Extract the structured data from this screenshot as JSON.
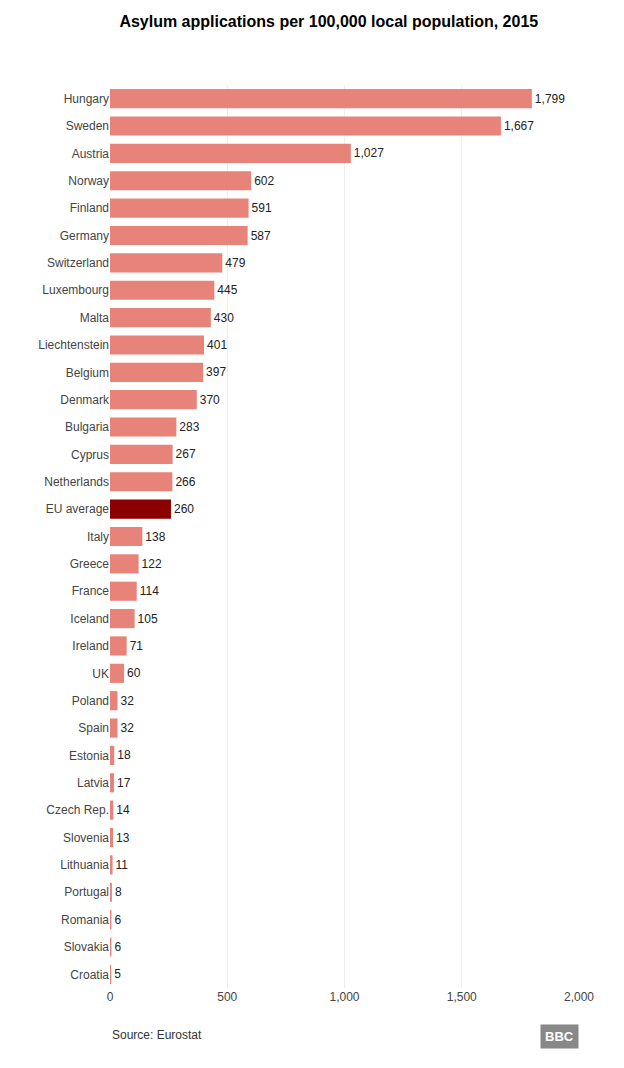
{
  "chart_data": {
    "type": "bar",
    "orientation": "horizontal",
    "title": "Asylum applications per 100,000 local population, 2015",
    "categories": [
      "Hungary",
      "Sweden",
      "Austria",
      "Norway",
      "Finland",
      "Germany",
      "Switzerland",
      "Luxembourg",
      "Malta",
      "Liechtenstein",
      "Belgium",
      "Denmark",
      "Bulgaria",
      "Cyprus",
      "Netherlands",
      "EU average",
      "Italy",
      "Greece",
      "France",
      "Iceland",
      "Ireland",
      "UK",
      "Poland",
      "Spain",
      "Estonia",
      "Latvia",
      "Czech Rep.",
      "Slovenia",
      "Lithuania",
      "Portugal",
      "Romania",
      "Slovakia",
      "Croatia"
    ],
    "values": [
      1799,
      1667,
      1027,
      602,
      591,
      587,
      479,
      445,
      430,
      401,
      397,
      370,
      283,
      267,
      266,
      260,
      138,
      122,
      114,
      105,
      71,
      60,
      32,
      32,
      18,
      17,
      14,
      13,
      11,
      8,
      6,
      6,
      5
    ],
    "value_labels": [
      "1,799",
      "1,667",
      "1,027",
      "602",
      "591",
      "587",
      "479",
      "445",
      "430",
      "401",
      "397",
      "370",
      "283",
      "267",
      "266",
      "260",
      "138",
      "122",
      "114",
      "105",
      "71",
      "60",
      "32",
      "32",
      "18",
      "17",
      "14",
      "13",
      "11",
      "8",
      "6",
      "6",
      "5"
    ],
    "data_labels": true,
    "colors": [
      "#e8837a",
      "#e8837a",
      "#e8837a",
      "#e8837a",
      "#e8837a",
      "#e8837a",
      "#e8837a",
      "#e8837a",
      "#e8837a",
      "#e8837a",
      "#e8837a",
      "#e8837a",
      "#e8837a",
      "#e8837a",
      "#e8837a",
      "#8b0000",
      "#e8837a",
      "#e8837a",
      "#e8837a",
      "#e8837a",
      "#e8837a",
      "#e8837a",
      "#e8837a",
      "#e8837a",
      "#e8837a",
      "#e8837a",
      "#e8837a",
      "#e8837a",
      "#e8837a",
      "#e8837a",
      "#e8837a",
      "#e8837a",
      "#e8837a"
    ],
    "xlim": [
      0,
      2000
    ],
    "xticks": [
      0,
      500,
      {
        "value": 1000,
        "label": "1,000"
      },
      {
        "value": 1500,
        "label": "1,500"
      },
      {
        "value": 2000,
        "label": "2,000"
      }
    ],
    "grid": true,
    "annotations": [
      "Source: Eurostat",
      "BBC"
    ]
  }
}
